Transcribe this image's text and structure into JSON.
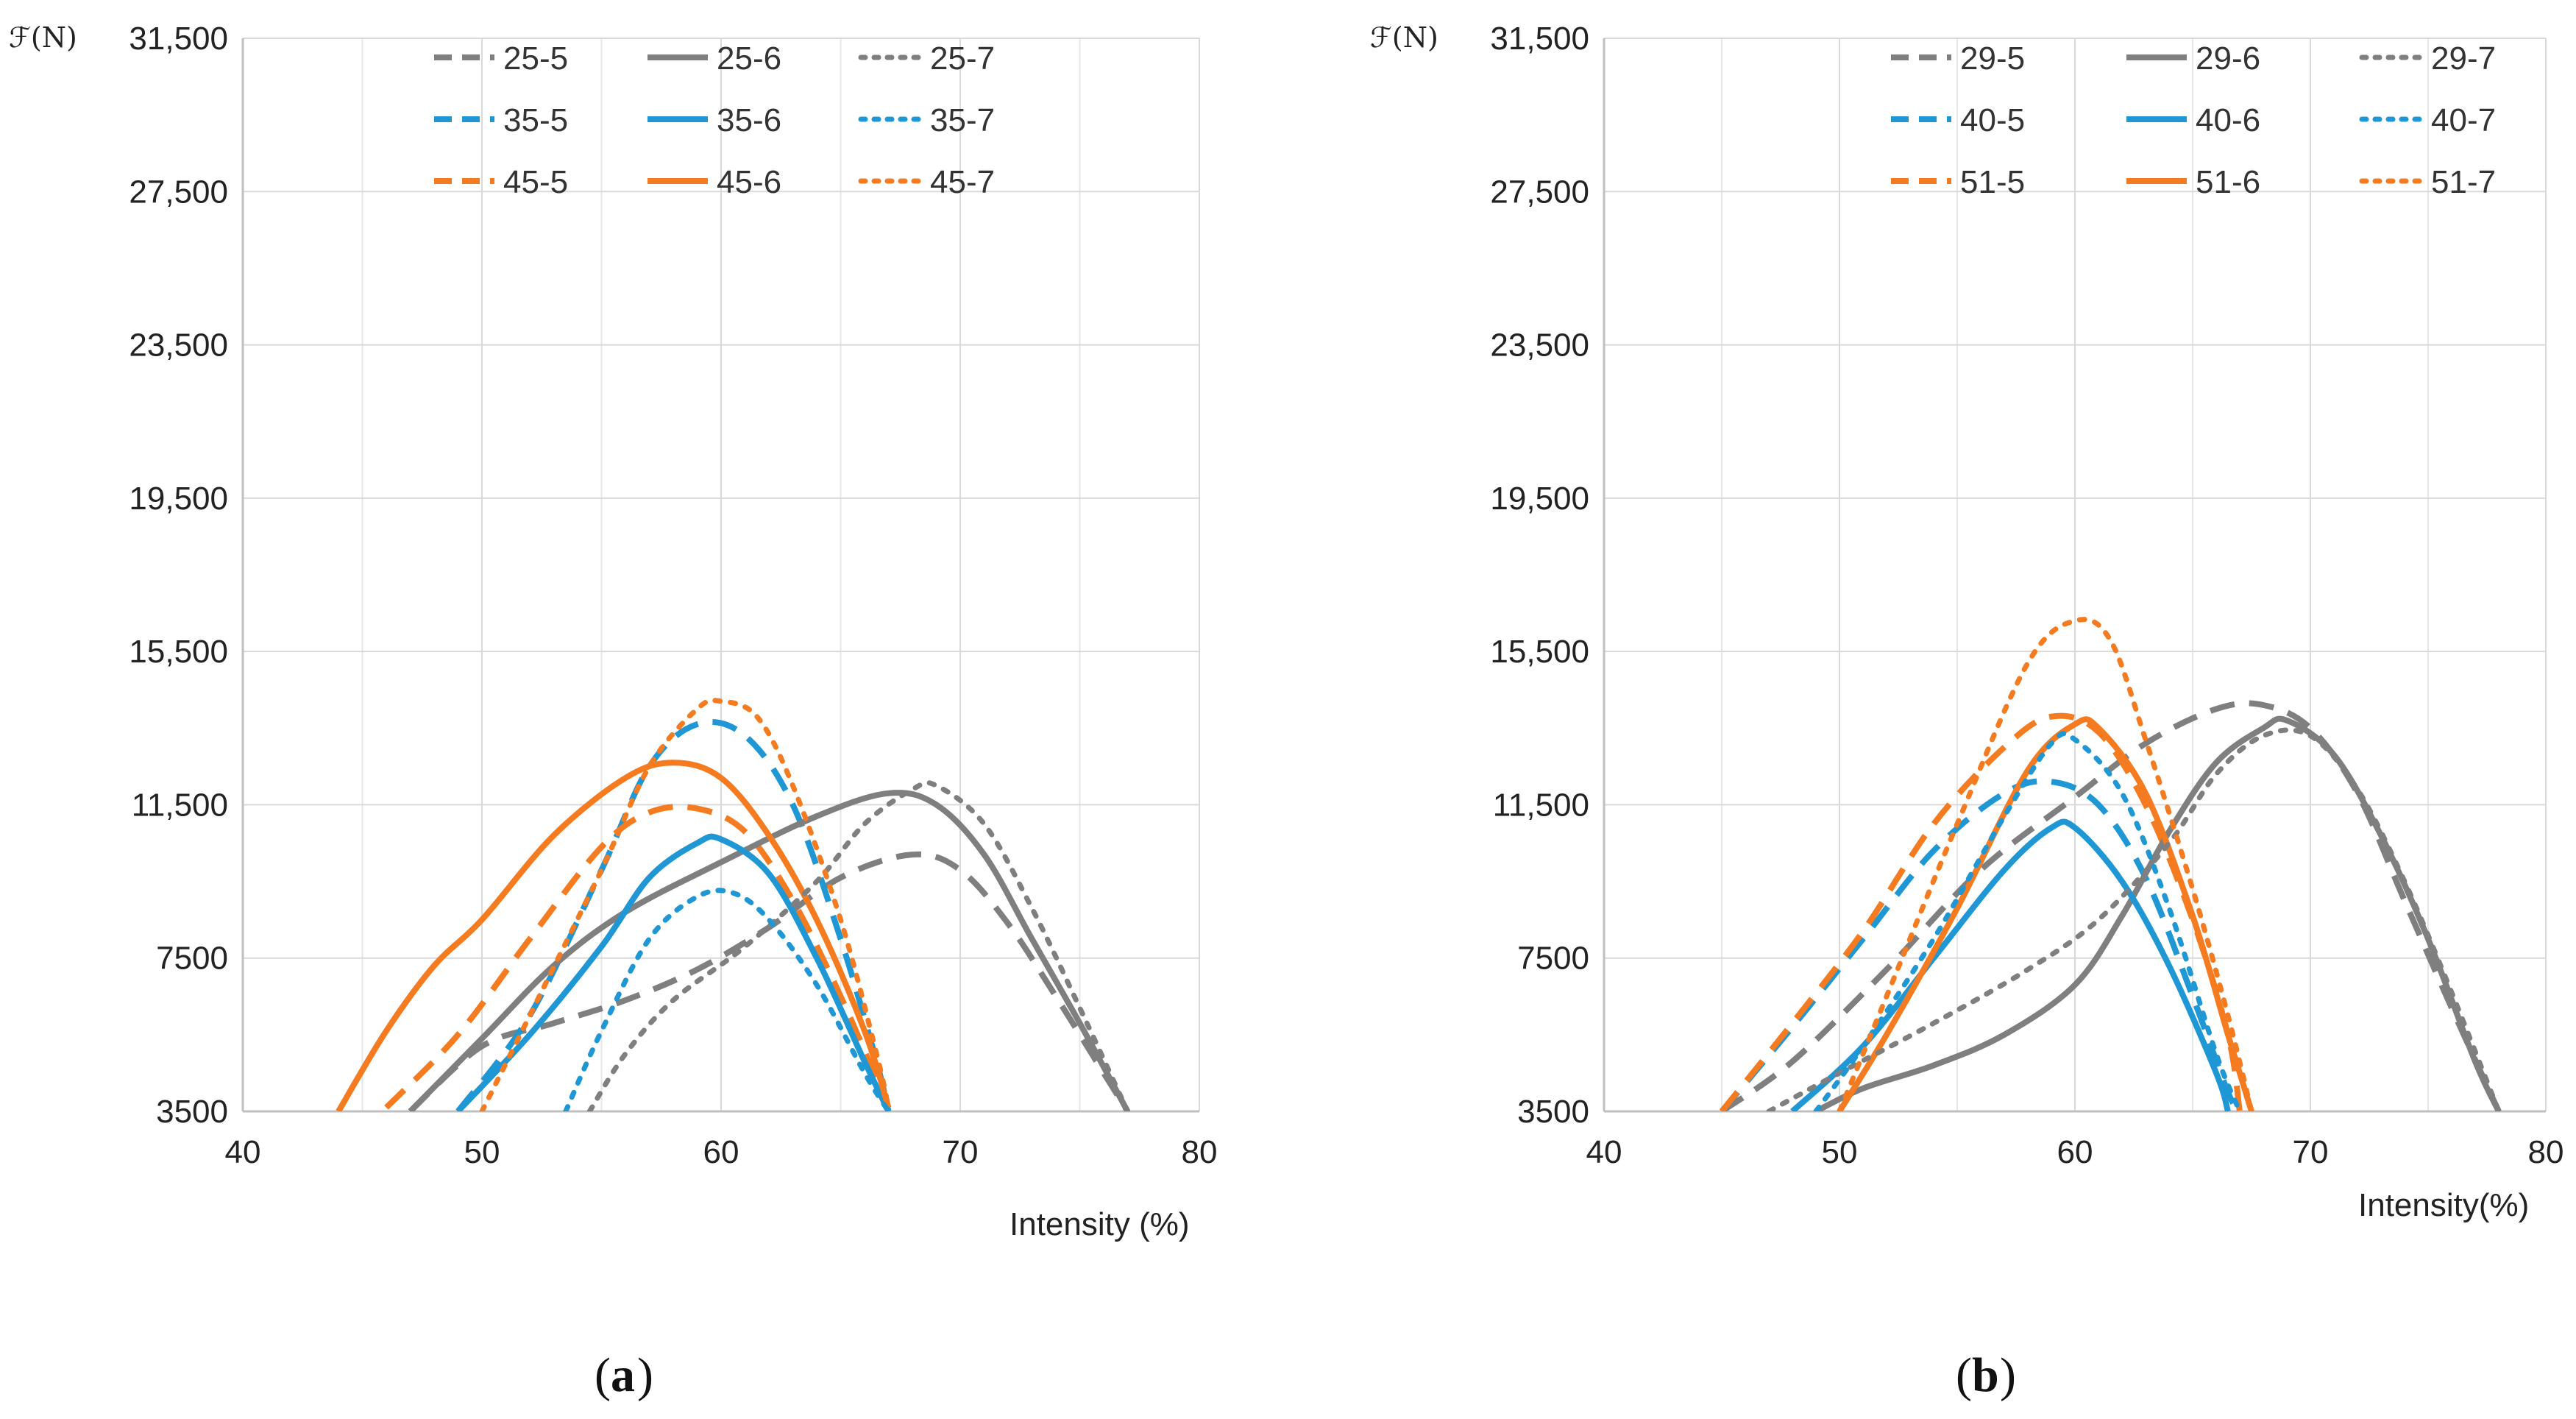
{
  "figure": {
    "caption_a_letter": "a",
    "caption_b_letter": "b"
  },
  "chart_data": [
    {
      "id": "a",
      "type": "line",
      "title": "",
      "ylabel": "ℱ(N)",
      "xlabel": "Intensity (%)",
      "xlim": [
        40,
        80
      ],
      "ylim": [
        3500,
        31500
      ],
      "xticks": [
        40,
        50,
        60,
        70,
        80
      ],
      "yticks": [
        3500,
        7500,
        11500,
        15500,
        19500,
        23500,
        27500,
        31500
      ],
      "ytick_labels": [
        "3500",
        "7500",
        "11,500",
        "15,500",
        "19,500",
        "23,500",
        "27,500",
        "31,500"
      ],
      "legend_position": "top",
      "series": [
        {
          "name": "25-5",
          "color": "#7f7f7f",
          "style": "dashed",
          "points": [
            [
              47,
              3500
            ],
            [
              50,
              5200
            ],
            [
              53,
              5800
            ],
            [
              56,
              6400
            ],
            [
              59,
              7200
            ],
            [
              62,
              8300
            ],
            [
              65,
              9600
            ],
            [
              68,
              10200
            ],
            [
              70,
              9800
            ],
            [
              72,
              8400
            ],
            [
              74,
              6500
            ],
            [
              76,
              4500
            ],
            [
              77,
              3500
            ]
          ]
        },
        {
          "name": "35-5",
          "color": "#1f97d4",
          "style": "dashed",
          "points": [
            [
              49,
              3500
            ],
            [
              52,
              6000
            ],
            [
              55,
              9800
            ],
            [
              57,
              12500
            ],
            [
              59,
              13600
            ],
            [
              61,
              13300
            ],
            [
              63,
              11500
            ],
            [
              65,
              8000
            ],
            [
              66.5,
              4800
            ],
            [
              67,
              3500
            ]
          ]
        },
        {
          "name": "45-5",
          "color": "#f47b20",
          "style": "dashed",
          "points": [
            [
              46,
              3600
            ],
            [
              49,
              5500
            ],
            [
              52,
              8000
            ],
            [
              55,
              10400
            ],
            [
              57,
              11300
            ],
            [
              59,
              11400
            ],
            [
              61,
              10800
            ],
            [
              63,
              9000
            ],
            [
              65,
              6500
            ],
            [
              67,
              3600
            ]
          ]
        },
        {
          "name": "25-6",
          "color": "#7f7f7f",
          "style": "solid",
          "points": [
            [
              47,
              3500
            ],
            [
              50,
              5400
            ],
            [
              53,
              7300
            ],
            [
              56,
              8700
            ],
            [
              60,
              10000
            ],
            [
              64,
              11200
            ],
            [
              67,
              11800
            ],
            [
              69,
              11500
            ],
            [
              71,
              10200
            ],
            [
              73,
              8000
            ],
            [
              75,
              5800
            ],
            [
              77,
              3500
            ]
          ]
        },
        {
          "name": "35-6",
          "color": "#1f97d4",
          "style": "solid",
          "points": [
            [
              49,
              3500
            ],
            [
              52,
              5500
            ],
            [
              55,
              7800
            ],
            [
              57,
              9600
            ],
            [
              59,
              10500
            ],
            [
              60,
              10600
            ],
            [
              62,
              9700
            ],
            [
              64,
              7500
            ],
            [
              66,
              4800
            ],
            [
              67,
              3500
            ]
          ]
        },
        {
          "name": "45-6",
          "color": "#f47b20",
          "style": "solid",
          "points": [
            [
              44,
              3500
            ],
            [
              46,
              5600
            ],
            [
              48,
              7300
            ],
            [
              50,
              8500
            ],
            [
              53,
              10700
            ],
            [
              56,
              12200
            ],
            [
              58,
              12600
            ],
            [
              60,
              12200
            ],
            [
              62,
              10700
            ],
            [
              64,
              8500
            ],
            [
              66,
              5600
            ],
            [
              67,
              3600
            ]
          ]
        },
        {
          "name": "25-7",
          "color": "#7f7f7f",
          "style": "dotted",
          "points": [
            [
              54.5,
              3500
            ],
            [
              56,
              5000
            ],
            [
              58,
              6400
            ],
            [
              61,
              7800
            ],
            [
              64,
              9500
            ],
            [
              66,
              11000
            ],
            [
              68,
              11900
            ],
            [
              69,
              12000
            ],
            [
              71,
              11000
            ],
            [
              73,
              8800
            ],
            [
              75,
              6200
            ],
            [
              77,
              3500
            ]
          ]
        },
        {
          "name": "35-7",
          "color": "#1f97d4",
          "style": "dotted",
          "points": [
            [
              53.5,
              3500
            ],
            [
              55,
              5600
            ],
            [
              57,
              8000
            ],
            [
              59,
              9100
            ],
            [
              60.5,
              9200
            ],
            [
              62,
              8500
            ],
            [
              64,
              6800
            ],
            [
              66,
              4500
            ],
            [
              67,
              3500
            ]
          ]
        },
        {
          "name": "45-7",
          "color": "#f47b20",
          "style": "dotted",
          "points": [
            [
              50,
              3500
            ],
            [
              52,
              6000
            ],
            [
              55,
              9800
            ],
            [
              57,
              12500
            ],
            [
              59,
              14000
            ],
            [
              60,
              14200
            ],
            [
              61.5,
              13800
            ],
            [
              63,
              12000
            ],
            [
              65,
              8500
            ],
            [
              66.5,
              5000
            ],
            [
              67,
              3600
            ]
          ]
        }
      ]
    },
    {
      "id": "b",
      "type": "line",
      "title": "",
      "ylabel": "ℱ(N)",
      "xlabel": "Intensity(%)",
      "xlim": [
        40,
        80
      ],
      "ylim": [
        3500,
        31500
      ],
      "xticks": [
        40,
        50,
        60,
        70,
        80
      ],
      "yticks": [
        3500,
        7500,
        11500,
        15500,
        19500,
        23500,
        27500,
        31500
      ],
      "ytick_labels": [
        "3500",
        "7500",
        "11,500",
        "15,500",
        "19,500",
        "23,500",
        "27,500",
        "31,500"
      ],
      "legend_position": "top",
      "series": [
        {
          "name": "29-5",
          "color": "#7f7f7f",
          "style": "dashed",
          "points": [
            [
              45,
              3500
            ],
            [
              48,
              4800
            ],
            [
              52,
              7200
            ],
            [
              56,
              9800
            ],
            [
              60,
              11700
            ],
            [
              63,
              13100
            ],
            [
              66,
              14000
            ],
            [
              68,
              14100
            ],
            [
              70,
              13500
            ],
            [
              72,
              11800
            ],
            [
              74,
              9000
            ],
            [
              76,
              6200
            ],
            [
              78,
              3500
            ]
          ]
        },
        {
          "name": "40-5",
          "color": "#1f97d4",
          "style": "dashed",
          "points": [
            [
              45,
              3500
            ],
            [
              48,
              5700
            ],
            [
              51,
              8000
            ],
            [
              54,
              10300
            ],
            [
              57,
              11800
            ],
            [
              59,
              12100
            ],
            [
              61,
              11500
            ],
            [
              63,
              9600
            ],
            [
              65,
              6500
            ],
            [
              66.5,
              4000
            ],
            [
              67,
              3500
            ]
          ]
        },
        {
          "name": "51-5",
          "color": "#f47b20",
          "style": "dashed",
          "points": [
            [
              45,
              3500
            ],
            [
              48,
              5800
            ],
            [
              51,
              8200
            ],
            [
              54,
              11000
            ],
            [
              57,
              13000
            ],
            [
              59,
              13800
            ],
            [
              61,
              13400
            ],
            [
              63,
              11500
            ],
            [
              65,
              8500
            ],
            [
              66.5,
              5500
            ],
            [
              67,
              3500
            ]
          ]
        },
        {
          "name": "29-6",
          "color": "#7f7f7f",
          "style": "solid",
          "points": [
            [
              49,
              3500
            ],
            [
              51,
              4100
            ],
            [
              54,
              4700
            ],
            [
              57,
              5500
            ],
            [
              60,
              6800
            ],
            [
              62,
              8600
            ],
            [
              64,
              10800
            ],
            [
              66,
              12600
            ],
            [
              68,
              13500
            ],
            [
              69,
              13700
            ],
            [
              71,
              12800
            ],
            [
              73,
              10700
            ],
            [
              75,
              8000
            ],
            [
              77,
              4800
            ],
            [
              78,
              3500
            ]
          ]
        },
        {
          "name": "40-6",
          "color": "#1f97d4",
          "style": "solid",
          "points": [
            [
              48,
              3500
            ],
            [
              51,
              5200
            ],
            [
              54,
              7500
            ],
            [
              57,
              9800
            ],
            [
              59,
              10900
            ],
            [
              60,
              10900
            ],
            [
              62,
              9500
            ],
            [
              64,
              7300
            ],
            [
              66,
              4500
            ],
            [
              66.5,
              3500
            ]
          ]
        },
        {
          "name": "51-6",
          "color": "#f47b20",
          "style": "solid",
          "points": [
            [
              50,
              3500
            ],
            [
              52,
              5500
            ],
            [
              55,
              8800
            ],
            [
              58,
              12400
            ],
            [
              60,
              13600
            ],
            [
              61,
              13500
            ],
            [
              63,
              11800
            ],
            [
              65,
              8600
            ],
            [
              66.5,
              5500
            ],
            [
              67.5,
              3500
            ]
          ]
        },
        {
          "name": "29-7",
          "color": "#7f7f7f",
          "style": "dotted",
          "points": [
            [
              47,
              3500
            ],
            [
              50,
              4500
            ],
            [
              54,
              5800
            ],
            [
              58,
              7200
            ],
            [
              61,
              8500
            ],
            [
              64,
              10500
            ],
            [
              66,
              12300
            ],
            [
              68,
              13300
            ],
            [
              70,
              13300
            ],
            [
              72,
              11900
            ],
            [
              74,
              9500
            ],
            [
              76,
              6600
            ],
            [
              78,
              3500
            ]
          ]
        },
        {
          "name": "40-7",
          "color": "#1f97d4",
          "style": "dotted",
          "points": [
            [
              49,
              3500
            ],
            [
              51,
              5200
            ],
            [
              54,
              8000
            ],
            [
              57,
              11200
            ],
            [
              59,
              13100
            ],
            [
              60,
              13200
            ],
            [
              62,
              11800
            ],
            [
              64,
              8800
            ],
            [
              66,
              5000
            ],
            [
              67,
              3500
            ]
          ]
        },
        {
          "name": "51-7",
          "color": "#f47b20",
          "style": "dotted",
          "points": [
            [
              50,
              3500
            ],
            [
              52,
              6500
            ],
            [
              55,
              11000
            ],
            [
              58,
              15200
            ],
            [
              60,
              16300
            ],
            [
              61.5,
              15800
            ],
            [
              63,
              13200
            ],
            [
              65,
              9300
            ],
            [
              66.5,
              6000
            ],
            [
              67.5,
              3500
            ]
          ]
        }
      ]
    }
  ]
}
